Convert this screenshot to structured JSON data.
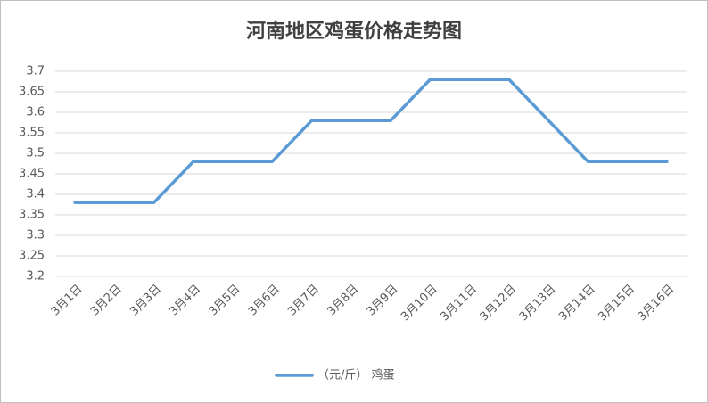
{
  "chart_data": {
    "type": "line",
    "title": "河南地区鸡蛋价格走势图",
    "categories": [
      "3月1日",
      "3月2日",
      "3月3日",
      "3月4日",
      "3月5日",
      "3月6日",
      "3月7日",
      "3月8日",
      "3月9日",
      "3月10日",
      "3月11日",
      "3月12日",
      "3月13日",
      "3月14日",
      "3月15日",
      "3月16日"
    ],
    "series": [
      {
        "name": "（元/斤） 鸡蛋",
        "color": "#5b9bd5",
        "values": [
          3.38,
          3.38,
          3.38,
          3.48,
          3.48,
          3.48,
          3.58,
          3.58,
          3.58,
          3.68,
          3.68,
          3.68,
          3.58,
          3.48,
          3.48,
          3.48
        ]
      }
    ],
    "ylim": [
      3.2,
      3.7
    ],
    "yticks": [
      3.2,
      3.25,
      3.3,
      3.35,
      3.4,
      3.45,
      3.5,
      3.55,
      3.6,
      3.65,
      3.7
    ],
    "grid": true,
    "legend": "bottom"
  }
}
